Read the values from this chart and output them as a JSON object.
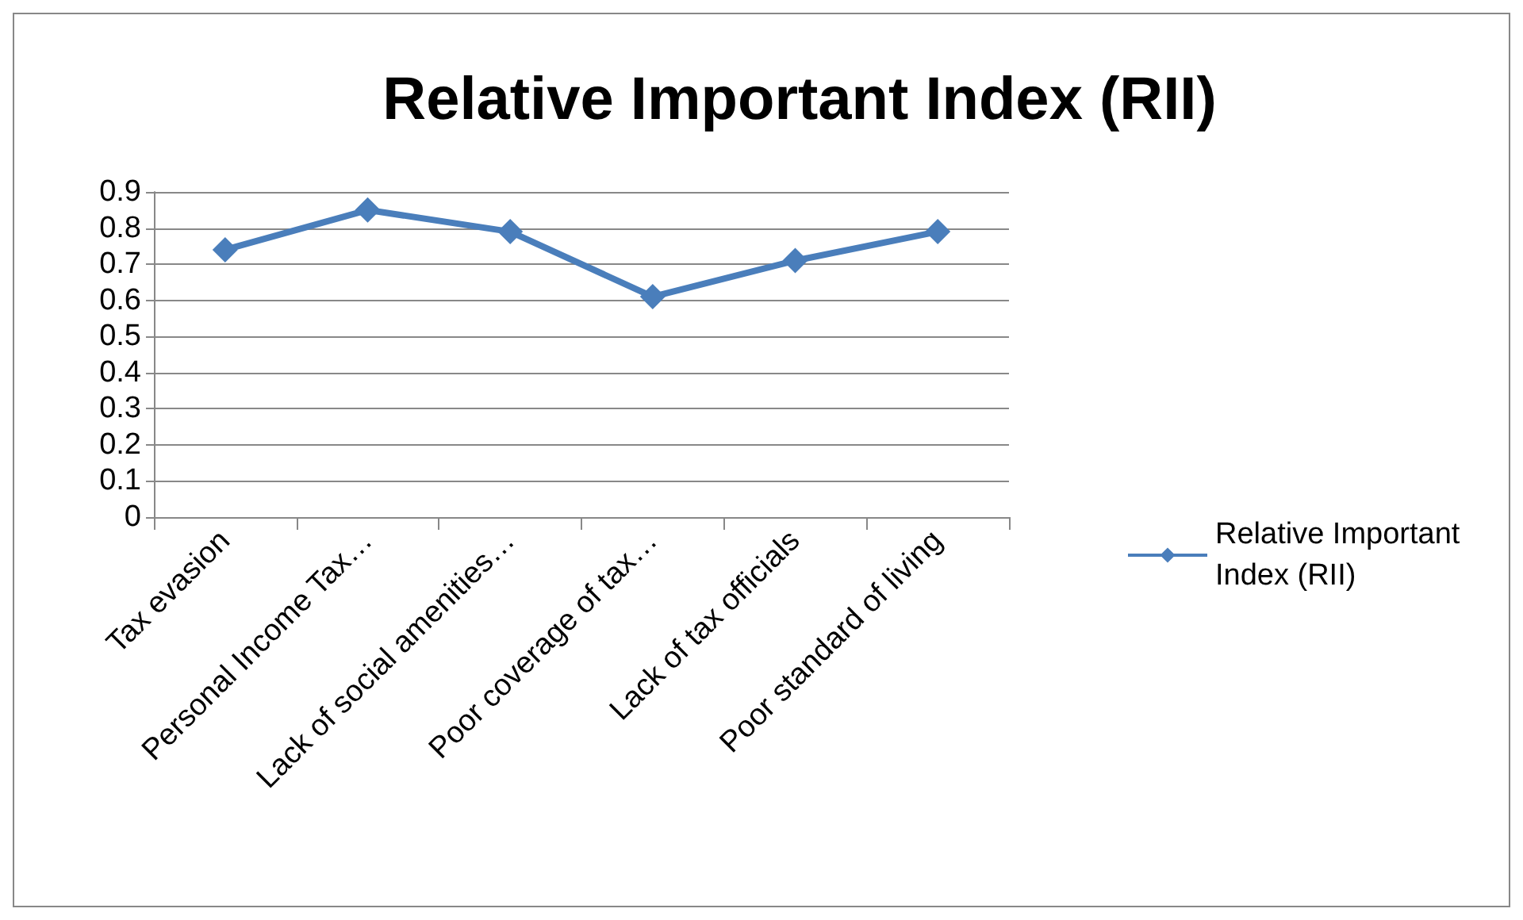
{
  "chart_data": {
    "type": "line",
    "title": "Relative Important Index (RII)",
    "categories": [
      "Tax evasion",
      "Personal Income Tax…",
      "Lack of social amenities…",
      "Poor coverage of tax…",
      "Lack of tax officials",
      "Poor standard of living"
    ],
    "series": [
      {
        "name": "Relative Important Index (RII)",
        "color": "#4a7ebb",
        "values": [
          0.74,
          0.85,
          0.79,
          0.61,
          0.71,
          0.79
        ]
      }
    ],
    "ylim": [
      0,
      0.9
    ],
    "yticks": [
      0,
      0.1,
      0.2,
      0.3,
      0.4,
      0.5,
      0.6,
      0.7,
      0.8,
      0.9
    ],
    "grid": "y",
    "legend": "right",
    "marker": "diamond",
    "line_style": "solid"
  }
}
